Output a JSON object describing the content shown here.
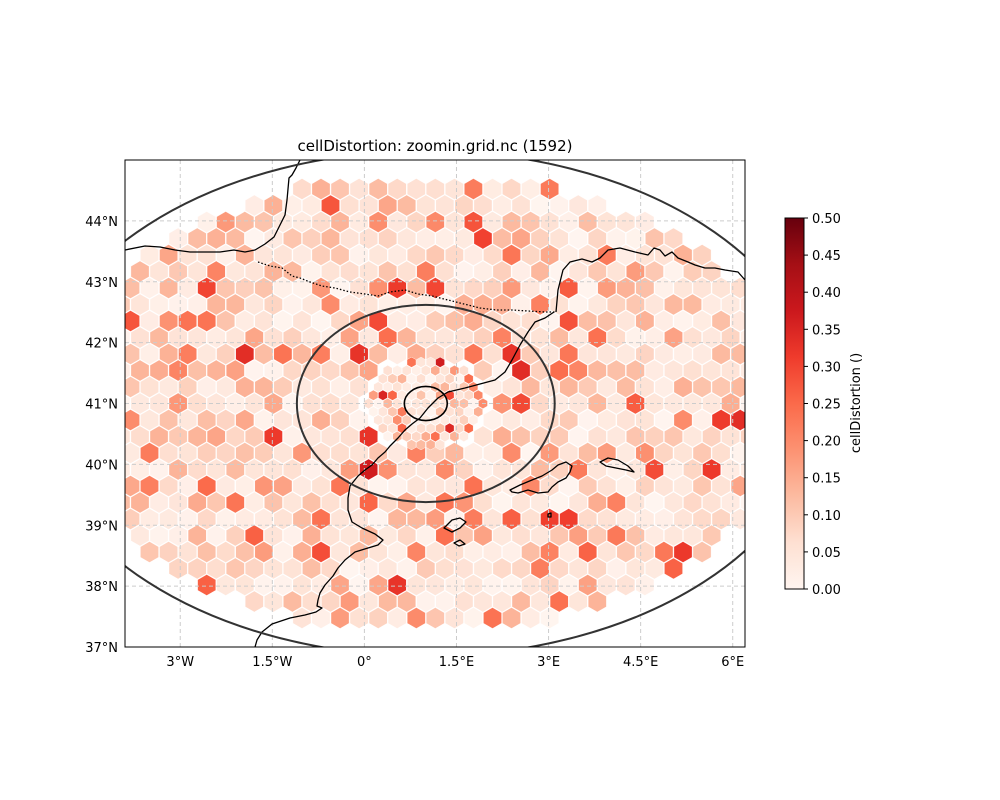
{
  "title": "cellDistortion: zoomin.grid.nc (1592)",
  "map": {
    "lon_range": [
      -3.9,
      6.2
    ],
    "lat_range": [
      37.0,
      45.0
    ],
    "x_ticks": [
      {
        "value": -3.0,
        "label": "3°W"
      },
      {
        "value": -1.5,
        "label": "1.5°W"
      },
      {
        "value": 0.0,
        "label": "0°"
      },
      {
        "value": 1.5,
        "label": "1.5°E"
      },
      {
        "value": 3.0,
        "label": "3°E"
      },
      {
        "value": 4.5,
        "label": "4.5°E"
      },
      {
        "value": 6.0,
        "label": "6°E"
      }
    ],
    "y_ticks": [
      {
        "value": 37,
        "label": "37°N"
      },
      {
        "value": 38,
        "label": "38°N"
      },
      {
        "value": 39,
        "label": "39°N"
      },
      {
        "value": 40,
        "label": "40°N"
      },
      {
        "value": 41,
        "label": "41°N"
      },
      {
        "value": 42,
        "label": "42°N"
      },
      {
        "value": 43,
        "label": "43°N"
      },
      {
        "value": 44,
        "label": "44°N"
      }
    ],
    "grid": true,
    "refinement_center": {
      "lon": 1.0,
      "lat": 41.0
    },
    "refinement_circles_deg": [
      {
        "name": "inner-circle",
        "radius_lon": 0.35,
        "radius_lat": 0.28
      },
      {
        "name": "middle-circle",
        "radius_lon": 2.1,
        "radius_lat": 1.62
      },
      {
        "name": "outer-circle",
        "radius_lon": 6.4,
        "radius_lat": 4.15
      }
    ],
    "features": [
      "coastline",
      "borders"
    ]
  },
  "colorbar": {
    "label": "cellDistortion ()",
    "min": 0.0,
    "max": 0.5,
    "colormap": "Reds",
    "ticks": [
      "0.00",
      "0.05",
      "0.10",
      "0.15",
      "0.20",
      "0.25",
      "0.30",
      "0.35",
      "0.40",
      "0.45",
      "0.50"
    ]
  },
  "colors": {
    "line": "#333333",
    "coast": "#000000",
    "grid": "#cccccc"
  }
}
